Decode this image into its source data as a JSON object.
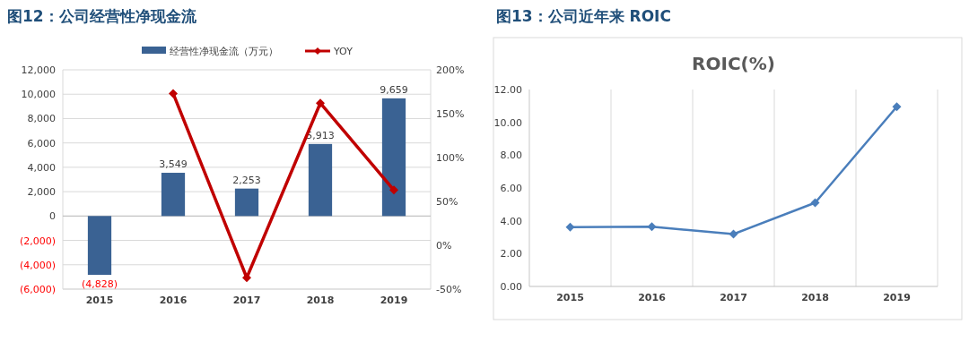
{
  "chart_data": [
    {
      "type": "bar",
      "title": "图12：公司经营性净现金流",
      "categories": [
        "2015",
        "2016",
        "2017",
        "2018",
        "2019"
      ],
      "series": [
        {
          "name": "经营性净现金流（万元）",
          "color": "#3a6293",
          "values": [
            -4828,
            3549,
            2253,
            5913,
            9659
          ],
          "value_labels": [
            "(4,828)",
            "3,549",
            "2,253",
            "5,913",
            "9,659"
          ]
        },
        {
          "name": "YOY",
          "type": "line",
          "axis": "y2",
          "color": "#c00000",
          "marker": "diamond",
          "values": [
            null,
            173,
            -37,
            162,
            63
          ]
        }
      ],
      "ylim": [
        -6000,
        12000
      ],
      "yticks": [
        {
          "value": -6000,
          "label": "(6,000)"
        },
        {
          "value": -4000,
          "label": "(4,000)"
        },
        {
          "value": -2000,
          "label": "(2,000)"
        },
        {
          "value": 0,
          "label": "0"
        },
        {
          "value": 2000,
          "label": "2,000"
        },
        {
          "value": 4000,
          "label": "4,000"
        },
        {
          "value": 6000,
          "label": "6,000"
        },
        {
          "value": 8000,
          "label": "8,000"
        },
        {
          "value": 10000,
          "label": "10,000"
        },
        {
          "value": 12000,
          "label": "12,000"
        }
      ],
      "y2lim": [
        -50,
        200
      ],
      "y2ticks": [
        {
          "value": -50,
          "label": "-50%"
        },
        {
          "value": 0,
          "label": "0%"
        },
        {
          "value": 50,
          "label": "50%"
        },
        {
          "value": 100,
          "label": "100%"
        },
        {
          "value": 150,
          "label": "150%"
        },
        {
          "value": 200,
          "label": "200%"
        }
      ],
      "grid": "y",
      "legend": "top"
    },
    {
      "type": "line",
      "title": "图13：公司近年来 ROIC",
      "subtitle": "ROIC(%)",
      "categories": [
        "2015",
        "2016",
        "2017",
        "2018",
        "2019"
      ],
      "series": [
        {
          "color": "#4a7ebb",
          "values": [
            3.62,
            3.64,
            3.19,
            5.1,
            10.95
          ]
        }
      ],
      "marker": "diamond",
      "ylim": [
        0,
        12
      ],
      "yticks": [
        {
          "value": 0,
          "label": "0.00"
        },
        {
          "value": 2,
          "label": "2.00"
        },
        {
          "value": 4,
          "label": "4.00"
        },
        {
          "value": 6,
          "label": "6.00"
        },
        {
          "value": 8,
          "label": "8.00"
        },
        {
          "value": 10,
          "label": "10.00"
        },
        {
          "value": 12,
          "label": "12.00"
        }
      ],
      "grid": "x"
    }
  ]
}
